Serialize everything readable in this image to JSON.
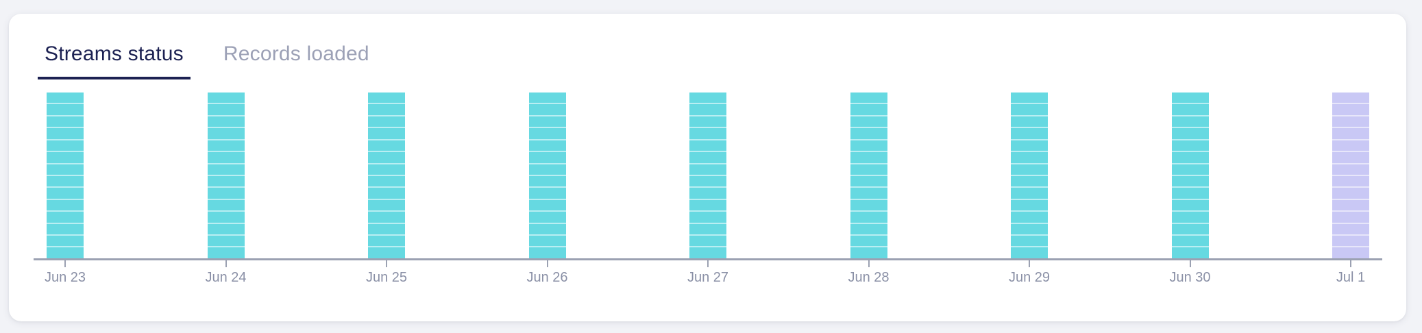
{
  "page": {
    "background": "#f2f3f7"
  },
  "card": {
    "background": "#ffffff"
  },
  "tabs": [
    {
      "label": "Streams status",
      "active": true
    },
    {
      "label": "Records loaded",
      "active": false
    }
  ],
  "tab_colors": {
    "active_text": "#1c2152",
    "active_underline": "#1c2152",
    "inactive_text": "#9ca1b6"
  },
  "chart_data": {
    "type": "bar",
    "title": "",
    "xlabel": "",
    "ylabel": "",
    "y_axis": "hidden",
    "grid": false,
    "legend": "none",
    "categories": [
      "Jun 23",
      "Jun 24",
      "Jun 25",
      "Jun 26",
      "Jun 27",
      "Jun 28",
      "Jun 29",
      "Jun 30",
      "Jul 1"
    ],
    "series": [
      {
        "name": "Streams status",
        "values": [
          14,
          14,
          14,
          14,
          14,
          14,
          14,
          14,
          14
        ]
      }
    ],
    "bars": [
      {
        "label": "Jun 23",
        "segments": 14,
        "color": "#66d9e1",
        "divider": "#b9eef2"
      },
      {
        "label": "Jun 24",
        "segments": 14,
        "color": "#66d9e1",
        "divider": "#b9eef2"
      },
      {
        "label": "Jun 25",
        "segments": 14,
        "color": "#66d9e1",
        "divider": "#b9eef2"
      },
      {
        "label": "Jun 26",
        "segments": 14,
        "color": "#66d9e1",
        "divider": "#b9eef2"
      },
      {
        "label": "Jun 27",
        "segments": 14,
        "color": "#66d9e1",
        "divider": "#b9eef2"
      },
      {
        "label": "Jun 28",
        "segments": 14,
        "color": "#66d9e1",
        "divider": "#b9eef2"
      },
      {
        "label": "Jun 29",
        "segments": 14,
        "color": "#66d9e1",
        "divider": "#b9eef2"
      },
      {
        "label": "Jun 30",
        "segments": 14,
        "color": "#66d9e1",
        "divider": "#b9eef2"
      },
      {
        "label": "Jul 1",
        "segments": 14,
        "color": "#c9c8f5",
        "divider": "#e7e6fa"
      }
    ],
    "axis_color": "#9ba1b2",
    "label_color": "#8a90a6"
  }
}
